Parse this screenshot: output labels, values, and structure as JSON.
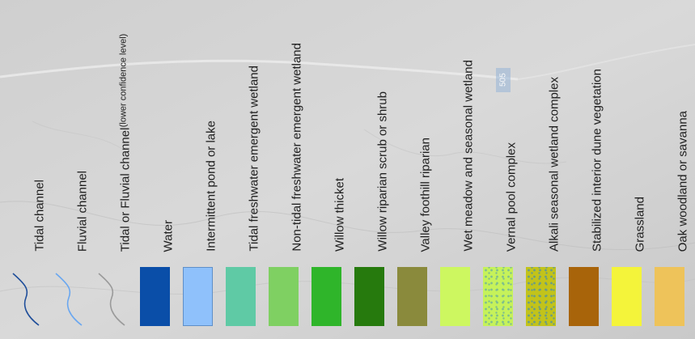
{
  "map": {
    "road_label": "505"
  },
  "legend": {
    "items": [
      {
        "id": "tidal-channel",
        "label": "Tidal channel",
        "kind": "channel",
        "color": "#1f4e9a"
      },
      {
        "id": "fluvial-channel",
        "label": "Fluvial channel",
        "kind": "channel",
        "color": "#6aa7f0"
      },
      {
        "id": "tidal-or-fluvial-channel",
        "label": "Tidal or Fluvial channel",
        "sublabel": "(lower confidence level)",
        "kind": "channel",
        "color": "#9a9a9a"
      },
      {
        "id": "water",
        "label": "Water",
        "kind": "fill",
        "color": "#0a4ea8"
      },
      {
        "id": "intermittent-pond",
        "label": "Intermittent pond or lake",
        "kind": "fill",
        "color": "#8fc1fb",
        "border": "#5f8fc8"
      },
      {
        "id": "tidal-freshwater-wetland",
        "label": "Tidal freshwater emergent wetland",
        "kind": "fill",
        "color": "#5fcaa5"
      },
      {
        "id": "non-tidal-freshwater-wetland",
        "label": "Non-tidal freshwater emergent wetland",
        "kind": "fill",
        "color": "#7fd062"
      },
      {
        "id": "willow-thicket",
        "label": "Willow thicket",
        "kind": "fill",
        "color": "#2fb52a"
      },
      {
        "id": "willow-riparian",
        "label": "Willow riparian scrub or shrub",
        "kind": "fill",
        "color": "#267a0d"
      },
      {
        "id": "valley-foothill-riparian",
        "label": "Valley foothill riparian",
        "kind": "fill",
        "color": "#8a8a3c"
      },
      {
        "id": "wet-meadow",
        "label": "Wet meadow and seasonal wetland",
        "kind": "fill",
        "color": "#cdf760"
      },
      {
        "id": "vernal-pool",
        "label": "Vernal pool complex",
        "kind": "pattern",
        "color": "#c6f25a",
        "dot": "#7fbf8c"
      },
      {
        "id": "alkali-seasonal-wetland",
        "label": "Alkali seasonal wetland complex",
        "kind": "pattern",
        "color": "#c2c31a",
        "dot": "#6a9c84"
      },
      {
        "id": "stabilized-dune",
        "label": "Stabilized interior dune vegetation",
        "kind": "fill",
        "color": "#a8640a"
      },
      {
        "id": "grassland",
        "label": "Grassland",
        "kind": "fill",
        "color": "#f4f43a"
      },
      {
        "id": "oak-woodland",
        "label": "Oak woodland or savanna",
        "kind": "fill",
        "color": "#eec35a"
      }
    ]
  }
}
